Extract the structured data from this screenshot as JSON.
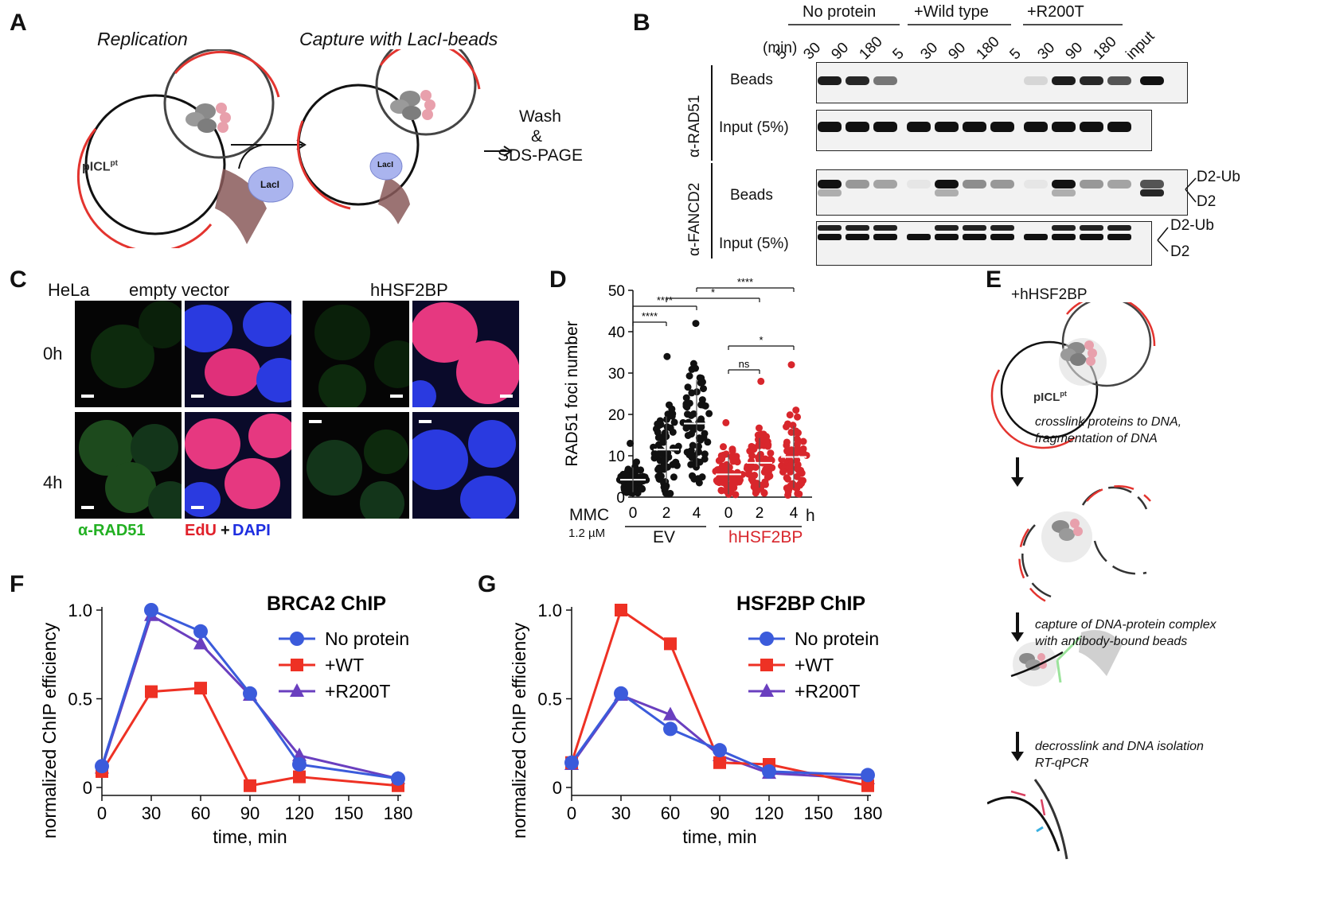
{
  "panels": {
    "A": {
      "label": "A",
      "replication": "Replication",
      "capture": "Capture with LacI-beads",
      "plasmid": "pICL",
      "plasmid_sup": "pt",
      "laci1": "LacI",
      "laci2": "LacI",
      "wash1": "Wash",
      "wash2": "&",
      "wash3": "SDS-PAGE"
    },
    "B": {
      "label": "B",
      "groups": [
        "No protein",
        "+Wild type",
        "+R200T"
      ],
      "min_label": "(min)",
      "times": [
        "5",
        "30",
        "90",
        "180",
        "5",
        "30",
        "90",
        "180",
        "5",
        "30",
        "90",
        "180"
      ],
      "input_lane": "input",
      "rad51_antibody": "α-RAD51",
      "fancd2_antibody": "α-FANCD2",
      "row_beads": "Beads",
      "row_input": "Input (5%)",
      "row_beads2": "Beads",
      "row_input2": "Input (5%)",
      "d2ub": "D2-Ub",
      "d2": "D2",
      "d2ub2": "D2-Ub",
      "d22": "D2"
    },
    "C": {
      "label": "C",
      "cell": "HeLa",
      "ev": "empty vector",
      "hsf": "hHSF2BP",
      "t0": "0h",
      "t4": "4h",
      "stain_rad51": "α-RAD51",
      "stain_edu": "EdU",
      "stain_plus": "+",
      "stain_dapi": "DAPI"
    },
    "D": {
      "label": "D",
      "mmc": "MMC",
      "conc": "1.2 µM",
      "ev": "EV",
      "hsf": "hHSF2BP",
      "h": "h"
    },
    "E": {
      "label": "E",
      "title": "+hHSF2BP",
      "plasmid": "pICL",
      "plasmid_sup": "pt",
      "step1a": "crosslink proteins to DNA,",
      "step1b": "fragmentation of DNA",
      "step2a": "capture of DNA-protein complex",
      "step2b": "with antibody-bound beads",
      "step3a": "decrosslink and DNA isolation",
      "step3b": "RT-qPCR"
    },
    "F": {
      "label": "F"
    },
    "G": {
      "label": "G"
    }
  },
  "chart_data": [
    {
      "type": "scatter",
      "panel": "D",
      "ylabel": "RAD51 foci number",
      "ylim": [
        0,
        50
      ],
      "yticks": [
        0,
        10,
        20,
        30,
        40,
        50
      ],
      "categories": [
        "0",
        "2",
        "4",
        "0",
        "2",
        "4"
      ],
      "groups": [
        {
          "name": "EV",
          "color": "#111111",
          "means": [
            4.2,
            11.5,
            17.8
          ],
          "sd": [
            3,
            8,
            10.5
          ],
          "max": [
            13,
            34,
            42
          ]
        },
        {
          "name": "hHSF2BP",
          "color": "#d8262c",
          "means": [
            5.5,
            8.3,
            9.7
          ],
          "sd": [
            4.8,
            6,
            7.5
          ],
          "max": [
            18,
            28,
            32
          ]
        }
      ],
      "significance": [
        {
          "from": 0,
          "to": 1,
          "label": "****"
        },
        {
          "from": 0,
          "to": 2,
          "label": "****"
        },
        {
          "from": 1,
          "to": 4,
          "label": "*"
        },
        {
          "from": 2,
          "to": 5,
          "label": "****"
        },
        {
          "from": 3,
          "to": 4,
          "label": "ns"
        },
        {
          "from": 3,
          "to": 5,
          "label": "*"
        }
      ]
    },
    {
      "type": "line",
      "panel": "F",
      "title": "BRCA2 ChIP",
      "xlabel": "time, min",
      "ylabel": "normalized ChIP efficiency",
      "x": [
        0,
        30,
        60,
        90,
        120,
        180
      ],
      "xlim": [
        0,
        180
      ],
      "xticks": [
        0,
        30,
        60,
        90,
        120,
        150,
        180
      ],
      "ylim": [
        0,
        1.0
      ],
      "yticks": [
        "0",
        "0.5",
        "1.0"
      ],
      "series": [
        {
          "name": "No protein",
          "color": "#3b5bdb",
          "marker": "circle",
          "values": [
            0.12,
            1.0,
            0.88,
            0.53,
            0.13,
            0.05
          ]
        },
        {
          "name": "+WT",
          "color": "#ee3124",
          "marker": "square",
          "values": [
            0.09,
            0.54,
            0.56,
            0.01,
            0.06,
            0.01
          ]
        },
        {
          "name": "+R200T",
          "color": "#6a3fbf",
          "marker": "triangle",
          "values": [
            0.11,
            0.97,
            0.81,
            0.52,
            0.18,
            0.05
          ]
        }
      ]
    },
    {
      "type": "line",
      "panel": "G",
      "title": "HSF2BP ChIP",
      "xlabel": "time, min",
      "ylabel": "normalized ChIP efficiency",
      "x": [
        0,
        30,
        60,
        90,
        120,
        180
      ],
      "xlim": [
        0,
        180
      ],
      "xticks": [
        0,
        30,
        60,
        90,
        120,
        150,
        180
      ],
      "ylim": [
        0,
        1.0
      ],
      "yticks": [
        "0",
        "0.5",
        "1.0"
      ],
      "series": [
        {
          "name": "No protein",
          "color": "#3b5bdb",
          "marker": "circle",
          "values": [
            0.14,
            0.53,
            0.33,
            0.21,
            0.09,
            0.07
          ]
        },
        {
          "name": "+WT",
          "color": "#ee3124",
          "marker": "square",
          "values": [
            0.14,
            1.0,
            0.81,
            0.14,
            0.13,
            0.01
          ]
        },
        {
          "name": "+R200T",
          "color": "#6a3fbf",
          "marker": "triangle",
          "values": [
            0.13,
            0.52,
            0.41,
            0.18,
            0.08,
            0.05
          ]
        }
      ]
    }
  ]
}
